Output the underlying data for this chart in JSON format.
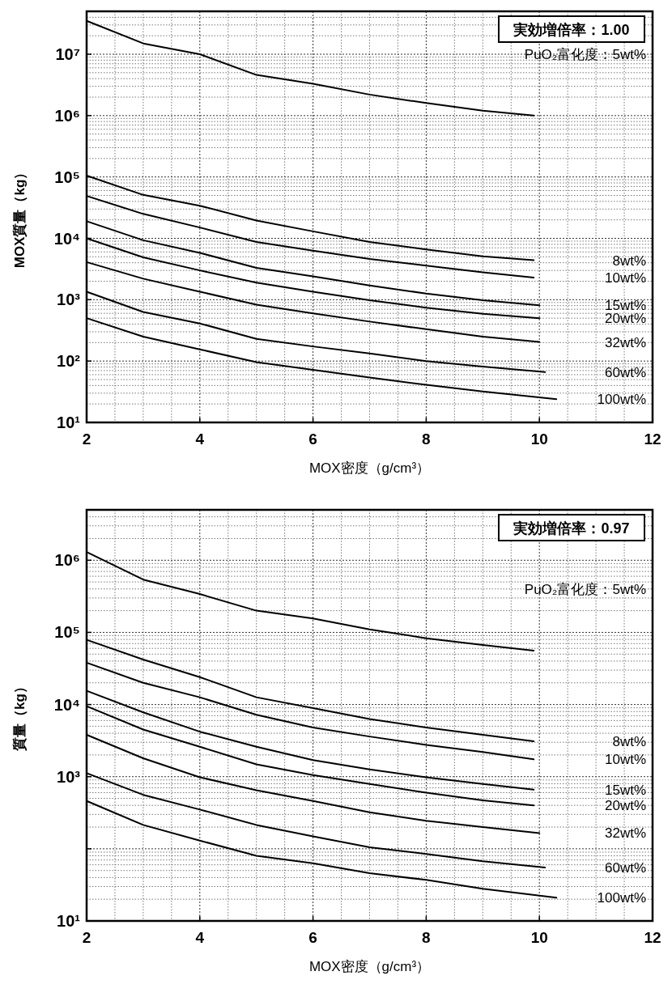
{
  "chart_data": [
    {
      "type": "line",
      "xlabel": "MOX密度（g/cm³）",
      "ylabel": "MOX質量（kg）",
      "annotations": [
        "実効増倍率：1.00"
      ],
      "log": "y",
      "grid": true,
      "xlim": [
        2,
        12
      ],
      "xticks": [
        2,
        4,
        6,
        8,
        10,
        12
      ],
      "ylim": [
        10,
        50000000
      ],
      "yticks": [
        {
          "value": 10,
          "label": "10¹"
        },
        {
          "value": 100,
          "label": "10²"
        },
        {
          "value": 1000,
          "label": "10³"
        },
        {
          "value": 10000,
          "label": "10⁴"
        },
        {
          "value": 100000,
          "label": "10⁵"
        },
        {
          "value": 1000000,
          "label": "10⁶"
        },
        {
          "value": 10000000,
          "label": "10⁷"
        }
      ],
      "series": [
        {
          "name": "PuO₂富化度：5wt%",
          "color": "#000000",
          "x": [
            2,
            3,
            4,
            5,
            6,
            7,
            8,
            9,
            9.9
          ],
          "values": [
            35000000,
            15000000,
            10000000,
            4600000,
            3300000,
            2200000,
            1600000,
            1200000,
            1000000
          ]
        },
        {
          "name": "8wt%",
          "color": "#000000",
          "x": [
            2,
            3,
            4,
            5,
            6,
            7,
            8,
            9,
            9.9
          ],
          "values": [
            105000,
            51000,
            34000,
            19500,
            13000,
            8700,
            6600,
            5100,
            4400
          ]
        },
        {
          "name": "10wt%",
          "color": "#000000",
          "x": [
            2,
            3,
            4,
            5,
            6,
            7,
            8,
            9,
            9.9
          ],
          "values": [
            49000,
            25000,
            15000,
            8700,
            6300,
            4600,
            3600,
            2800,
            2300
          ]
        },
        {
          "name": "15wt%",
          "color": "#000000",
          "x": [
            2,
            3,
            4,
            5,
            6,
            7,
            8,
            9,
            10
          ],
          "values": [
            19000,
            9300,
            5800,
            3300,
            2400,
            1700,
            1260,
            980,
            810
          ]
        },
        {
          "name": "20wt%",
          "color": "#000000",
          "x": [
            2,
            3,
            4,
            5,
            6,
            7,
            8,
            9,
            10
          ],
          "values": [
            10000,
            4900,
            3000,
            1900,
            1350,
            980,
            740,
            590,
            500
          ]
        },
        {
          "name": "32wt%",
          "color": "#000000",
          "x": [
            2,
            3,
            4,
            5,
            6,
            7,
            8,
            9,
            10
          ],
          "values": [
            4100,
            2200,
            1350,
            830,
            600,
            440,
            330,
            250,
            205
          ]
        },
        {
          "name": "60wt%",
          "color": "#000000",
          "x": [
            2,
            3,
            4,
            5,
            6,
            7,
            8,
            9,
            10.1
          ],
          "values": [
            1350,
            630,
            410,
            230,
            173,
            133,
            100,
            81,
            66
          ]
        },
        {
          "name": "100wt%",
          "color": "#000000",
          "x": [
            2,
            3,
            4,
            5,
            6,
            7,
            8,
            9,
            10.3
          ],
          "values": [
            500,
            250,
            155,
            96,
            72,
            54,
            41,
            32,
            24
          ]
        }
      ]
    },
    {
      "type": "line",
      "xlabel": "MOX密度（g/cm³）",
      "ylabel": "質量（kg）",
      "annotations": [
        "実効増倍率：0.97"
      ],
      "log": "y",
      "grid": true,
      "xlim": [
        2,
        12
      ],
      "xticks": [
        2,
        4,
        6,
        8,
        10,
        12
      ],
      "ylim": [
        10,
        5000000
      ],
      "yticks": [
        {
          "value": 10,
          "label": "10¹"
        },
        {
          "value": 100,
          "label": null
        },
        {
          "value": 1000,
          "label": "10³"
        },
        {
          "value": 10000,
          "label": "10⁴"
        },
        {
          "value": 100000,
          "label": "10⁵"
        },
        {
          "value": 1000000,
          "label": "10⁶"
        }
      ],
      "series": [
        {
          "name": "PuO₂富化度：5wt%",
          "color": "#000000",
          "x": [
            2,
            3,
            4,
            5,
            6,
            7,
            8,
            9,
            9.9
          ],
          "values": [
            1300000,
            540000,
            340000,
            200000,
            156000,
            110000,
            83000,
            67000,
            56000
          ]
        },
        {
          "name": "8wt%",
          "color": "#000000",
          "x": [
            2,
            3,
            4,
            5,
            6,
            7,
            8,
            9,
            9.9
          ],
          "values": [
            79000,
            42000,
            24000,
            12600,
            8900,
            6300,
            4800,
            3800,
            3100
          ]
        },
        {
          "name": "10wt%",
          "color": "#000000",
          "x": [
            2,
            3,
            4,
            5,
            6,
            7,
            8,
            9,
            9.9
          ],
          "values": [
            38000,
            20000,
            12600,
            7200,
            4800,
            3600,
            2750,
            2200,
            1740
          ]
        },
        {
          "name": "15wt%",
          "color": "#000000",
          "x": [
            2,
            3,
            4,
            5,
            6,
            7,
            8,
            9,
            9.9
          ],
          "values": [
            15500,
            7800,
            4200,
            2600,
            1700,
            1260,
            980,
            790,
            660
          ]
        },
        {
          "name": "20wt%",
          "color": "#000000",
          "x": [
            2,
            3,
            4,
            5,
            6,
            7,
            8,
            9,
            9.9
          ],
          "values": [
            9500,
            4500,
            2600,
            1480,
            1050,
            790,
            600,
            470,
            400
          ]
        },
        {
          "name": "32wt%",
          "color": "#000000",
          "x": [
            2,
            3,
            4,
            5,
            6,
            7,
            8,
            9,
            10
          ],
          "values": [
            3800,
            1800,
            980,
            650,
            460,
            320,
            245,
            200,
            165
          ]
        },
        {
          "name": "60wt%",
          "color": "#000000",
          "x": [
            2,
            3,
            4,
            5,
            6,
            7,
            8,
            9,
            10.1
          ],
          "values": [
            1120,
            560,
            350,
            214,
            149,
            105,
            85,
            67,
            55
          ]
        },
        {
          "name": "100wt%",
          "color": "#000000",
          "x": [
            2,
            3,
            4,
            5,
            6,
            7,
            8,
            9,
            10.3
          ],
          "values": [
            460,
            214,
            130,
            80,
            63,
            46,
            37,
            28,
            21
          ]
        }
      ]
    }
  ]
}
